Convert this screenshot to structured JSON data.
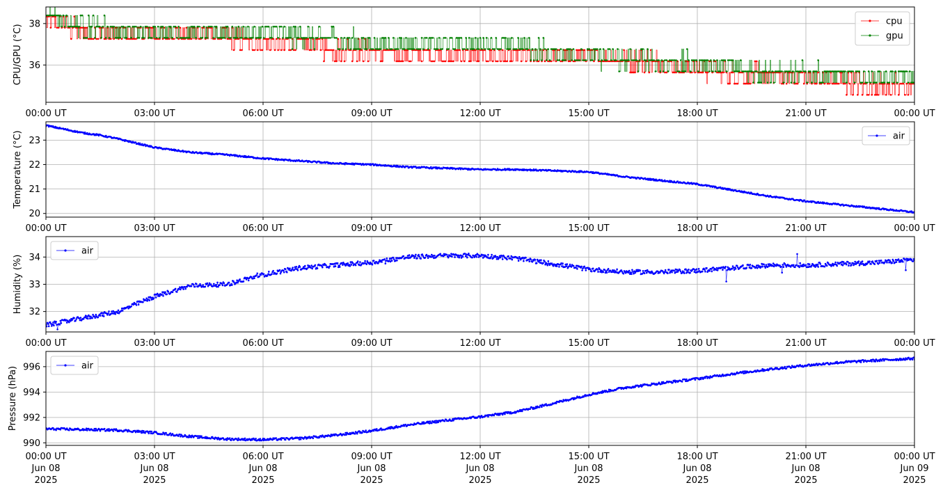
{
  "chart_data": [
    {
      "type": "line",
      "ylabel": "CPU/GPU (°C)",
      "xlabel": "",
      "xlim": [
        "2025-06-08 00:00",
        "2025-06-09 00:00"
      ],
      "ylim": [
        34.2,
        38.8
      ],
      "yticks": [
        36,
        38
      ],
      "xtick_labels": [
        "00:00 UT",
        "03:00 UT",
        "06:00 UT",
        "09:00 UT",
        "12:00 UT",
        "15:00 UT",
        "18:00 UT",
        "21:00 UT",
        "00:00 UT"
      ],
      "grid": true,
      "legend": "top-right",
      "x_hours": [
        0,
        0.5,
        1,
        2,
        3,
        4,
        5,
        6,
        7,
        8,
        9,
        10,
        11,
        12,
        13,
        14,
        15,
        16,
        17,
        18,
        19,
        20,
        21,
        22,
        23,
        24
      ],
      "series": [
        {
          "name": "cpu",
          "color": "#ff0000",
          "values": [
            38.1,
            37.9,
            37.5,
            37.5,
            37.5,
            37.5,
            37.4,
            37.0,
            37.0,
            36.8,
            36.6,
            36.5,
            36.5,
            36.4,
            36.4,
            36.4,
            36.4,
            36.3,
            36.1,
            35.8,
            35.6,
            35.5,
            35.4,
            35.2,
            35.0,
            34.9
          ]
        },
        {
          "name": "gpu",
          "color": "#008000",
          "values": [
            38.5,
            38.0,
            37.9,
            37.6,
            37.6,
            37.5,
            37.5,
            37.5,
            37.3,
            37.2,
            37.0,
            37.0,
            37.0,
            36.9,
            36.9,
            36.5,
            36.4,
            36.2,
            36.1,
            36.0,
            35.8,
            35.6,
            35.5,
            35.4,
            35.4,
            35.4
          ]
        }
      ]
    },
    {
      "type": "line",
      "ylabel": "Temperature (°C)",
      "xlabel": "",
      "xlim": [
        "2025-06-08 00:00",
        "2025-06-09 00:00"
      ],
      "ylim": [
        19.85,
        23.75
      ],
      "yticks": [
        20,
        21,
        22,
        23
      ],
      "xtick_labels": [
        "00:00 UT",
        "03:00 UT",
        "06:00 UT",
        "09:00 UT",
        "12:00 UT",
        "15:00 UT",
        "18:00 UT",
        "21:00 UT",
        "00:00 UT"
      ],
      "grid": true,
      "legend": "top-right",
      "x_hours": [
        0,
        0.5,
        1,
        1.5,
        2,
        3,
        4,
        5,
        6,
        7,
        8,
        9,
        10,
        11,
        12,
        13,
        14,
        15,
        16,
        17,
        18,
        19,
        20,
        21,
        22,
        23,
        24
      ],
      "series": [
        {
          "name": "air",
          "color": "#0000ff",
          "values": [
            23.6,
            23.45,
            23.3,
            23.2,
            23.05,
            22.7,
            22.5,
            22.4,
            22.25,
            22.15,
            22.05,
            22.0,
            21.9,
            21.85,
            21.8,
            21.8,
            21.75,
            21.7,
            21.5,
            21.35,
            21.2,
            20.95,
            20.7,
            20.5,
            20.35,
            20.2,
            20.05
          ]
        }
      ]
    },
    {
      "type": "line",
      "ylabel": "Humidity (%)",
      "xlabel": "",
      "xlim": [
        "2025-06-08 00:00",
        "2025-06-09 00:00"
      ],
      "ylim": [
        31.25,
        34.75
      ],
      "yticks": [
        32,
        33,
        34
      ],
      "xtick_labels": [
        "00:00 UT",
        "03:00 UT",
        "06:00 UT",
        "09:00 UT",
        "12:00 UT",
        "15:00 UT",
        "18:00 UT",
        "21:00 UT",
        "00:00 UT"
      ],
      "grid": true,
      "legend": "top-left",
      "x_hours": [
        0,
        1,
        2,
        3,
        4,
        5,
        6,
        7,
        8,
        9,
        10,
        11,
        12,
        13,
        14,
        15,
        16,
        17,
        18,
        19,
        20,
        21,
        22,
        23,
        24
      ],
      "series": [
        {
          "name": "air",
          "color": "#0000ff",
          "values": [
            31.5,
            31.75,
            32.0,
            32.55,
            32.95,
            33.0,
            33.35,
            33.6,
            33.7,
            33.8,
            34.0,
            34.05,
            34.05,
            33.95,
            33.75,
            33.55,
            33.45,
            33.45,
            33.5,
            33.6,
            33.7,
            33.7,
            33.75,
            33.8,
            33.9
          ]
        }
      ]
    },
    {
      "type": "line",
      "ylabel": "Pressure (hPa)",
      "xlabel": "",
      "xlim": [
        "2025-06-08 00:00",
        "2025-06-09 00:00"
      ],
      "ylim": [
        989.8,
        997.2
      ],
      "yticks": [
        990,
        992,
        994,
        996
      ],
      "xtick_labels": [
        "00:00 UT\nJun 08\n2025",
        "03:00 UT\nJun 08\n2025",
        "06:00 UT\nJun 08\n2025",
        "09:00 UT\nJun 08\n2025",
        "12:00 UT\nJun 08\n2025",
        "15:00 UT\nJun 08\n2025",
        "18:00 UT\nJun 08\n2025",
        "21:00 UT\nJun 08\n2025",
        "00:00 UT\nJun 09\n2025"
      ],
      "grid": true,
      "legend": "top-left",
      "x_hours": [
        0,
        1,
        2,
        3,
        4,
        5,
        6,
        7,
        8,
        9,
        10,
        11,
        12,
        13,
        14,
        15,
        16,
        17,
        18,
        19,
        20,
        21,
        22,
        23,
        24
      ],
      "series": [
        {
          "name": "air",
          "color": "#0000ff",
          "values": [
            991.1,
            991.05,
            991.0,
            990.8,
            990.5,
            990.3,
            990.25,
            990.35,
            990.6,
            990.95,
            991.4,
            991.75,
            992.05,
            992.45,
            993.1,
            993.8,
            994.35,
            994.7,
            995.05,
            995.45,
            995.8,
            996.1,
            996.35,
            996.5,
            996.65
          ]
        }
      ]
    }
  ]
}
